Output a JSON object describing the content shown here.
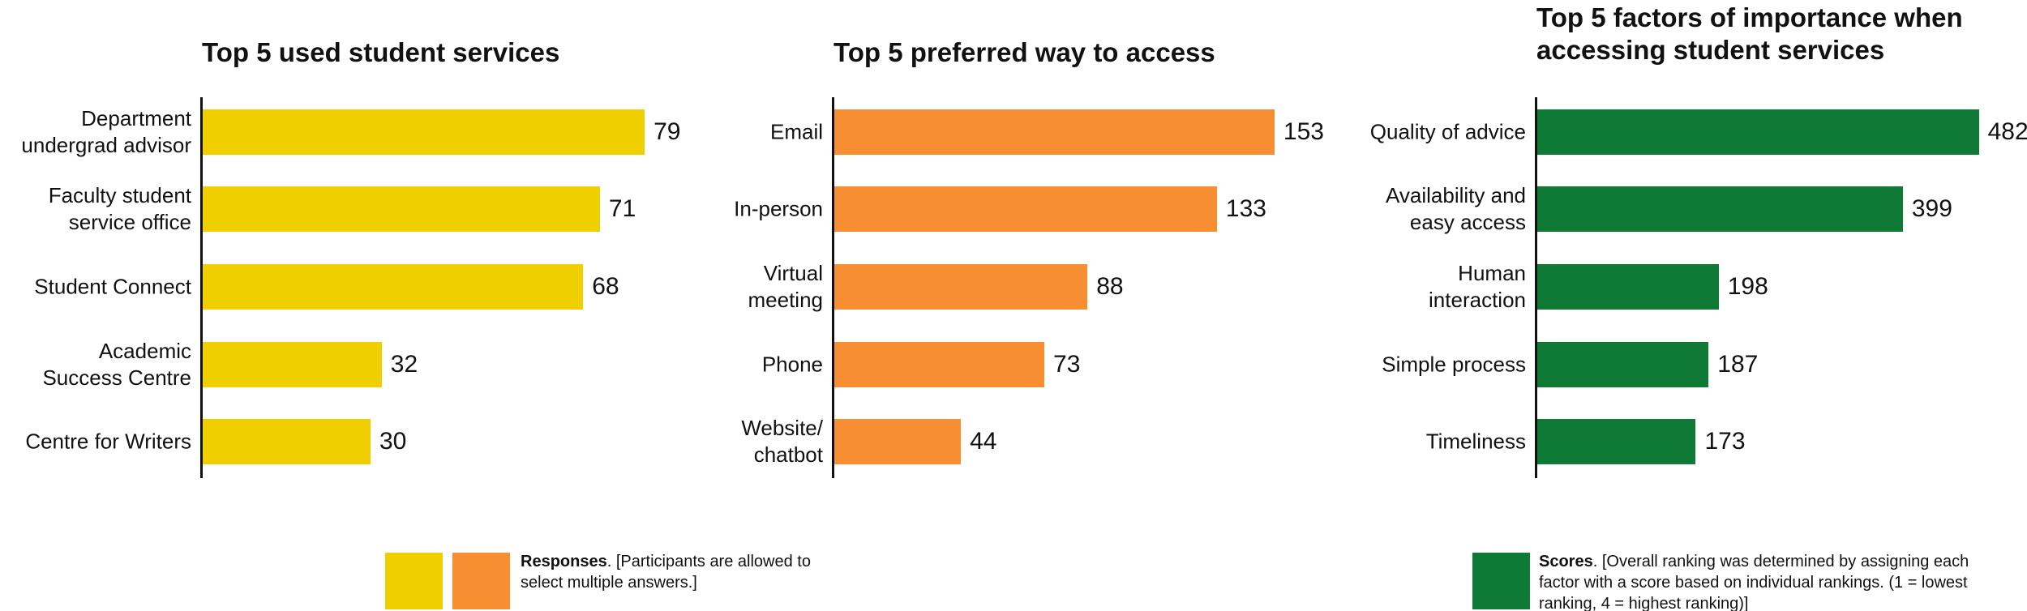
{
  "chart_data": [
    {
      "type": "bar",
      "orientation": "horizontal",
      "title": "Top 5 used student services",
      "categories": [
        "Department undergrad advisor",
        "Faculty student service office",
        "Student Connect",
        "Academic Success Centre",
        "Centre for Writers"
      ],
      "values": [
        79,
        71,
        68,
        32,
        30
      ],
      "color": "#f0cf00",
      "xlim": [
        0,
        80
      ]
    },
    {
      "type": "bar",
      "orientation": "horizontal",
      "title": "Top 5 preferred way to access",
      "categories": [
        "Email",
        "In-person",
        "Virtual meeting",
        "Phone",
        "Website/ chatbot"
      ],
      "values": [
        153,
        133,
        88,
        73,
        44
      ],
      "color": "#f78f32",
      "xlim": [
        0,
        155
      ]
    },
    {
      "type": "bar",
      "orientation": "horizontal",
      "title": "Top 5 factors of importance when accessing student services",
      "categories": [
        "Quality of advice",
        "Availability and easy access",
        "Human interaction",
        "Simple process",
        "Timeliness"
      ],
      "values": [
        482,
        399,
        198,
        187,
        173
      ],
      "color": "#0e7a35",
      "xlim": [
        0,
        485
      ]
    }
  ],
  "legends": [
    {
      "colors": [
        "#f0cf00",
        "#f78f32"
      ],
      "label": "Responses",
      "note": ". [Participants are allowed to select multiple answers.]"
    },
    {
      "colors": [
        "#0e7a35"
      ],
      "label": "Scores",
      "note": ". [Overall ranking was determined by assigning each factor with a score based on individual rankings. (1 = lowest ranking, 4 = highest ranking)]"
    }
  ]
}
